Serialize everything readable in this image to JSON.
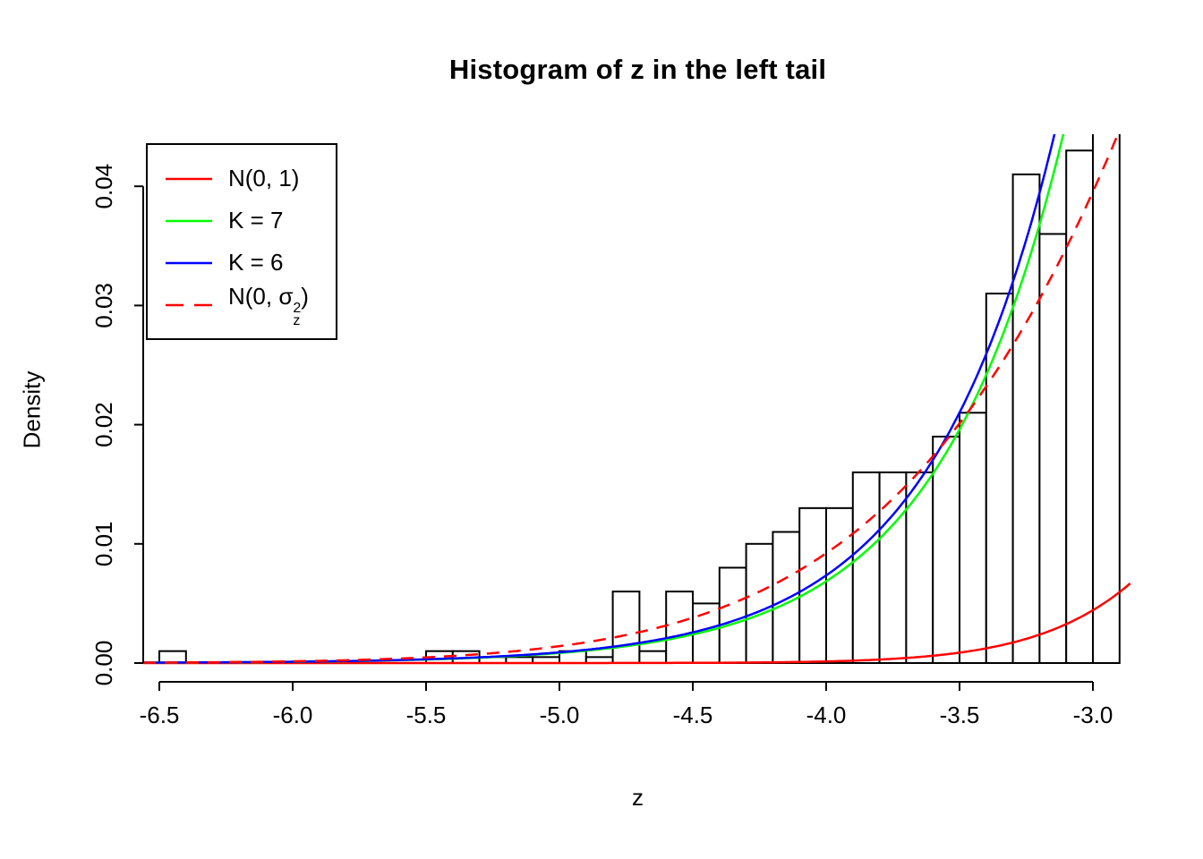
{
  "title": "Histogram of z in the left tail",
  "xlabel": "z",
  "ylabel": "Density",
  "legend": {
    "items": [
      {
        "label": "N(0, 1)",
        "color": "#ff0000",
        "dash": false
      },
      {
        "label": "K = 7",
        "color": "#00ff00",
        "dash": false
      },
      {
        "label": "K = 6",
        "color": "#0000ff",
        "dash": false
      },
      {
        "label_prefix": "N(0, σ",
        "label_sup": "2",
        "label_sub": "z",
        "label_suffix": ")",
        "color": "#ff0000",
        "dash": true
      }
    ]
  },
  "chart_data": {
    "type": "histogram",
    "title": "Histogram of z in the left tail",
    "xlabel": "z",
    "ylabel": "Density",
    "xlim": [
      -6.56,
      -2.853
    ],
    "ylim": [
      0,
      0.0444
    ],
    "grid": false,
    "legend_position": "top-left",
    "x_ticks": [
      -6.5,
      -6.0,
      -5.5,
      -5.0,
      -4.5,
      -4.0,
      -3.5,
      -3.0
    ],
    "x_tick_labels": [
      "-6.5",
      "-6.0",
      "-5.5",
      "-5.0",
      "-4.5",
      "-4.0",
      "-3.5",
      "-3.0"
    ],
    "y_ticks": [
      0,
      0.01,
      0.02,
      0.03,
      0.04
    ],
    "y_tick_labels": [
      "0.00",
      "0.01",
      "0.02",
      "0.03",
      "0.04"
    ],
    "histogram": {
      "bin_start": -6.5,
      "bin_width": 0.1,
      "fill": "#ffffff",
      "stroke": "#000000",
      "densities": [
        0.001,
        0,
        0,
        0,
        0,
        0,
        0,
        0,
        0,
        0,
        0.001,
        0.001,
        0.0005,
        0.0005,
        0.0005,
        0.001,
        0.0005,
        0.006,
        0.001,
        0.006,
        0.005,
        0.008,
        0.01,
        0.011,
        0.013,
        0.013,
        0.016,
        0.016,
        0.016,
        0.019,
        0.021,
        0.031,
        0.041,
        0.036,
        0.043,
        0.048
      ]
    },
    "curves": [
      {
        "name": "N(0, 1)",
        "kind": "normal",
        "mean": 0,
        "sd": 1.0,
        "color": "#ff0000",
        "dashed": false
      },
      {
        "name": "K = 7",
        "kind": "exponential",
        "scale": 30.5,
        "rate": 2.1,
        "color": "#00ff00",
        "dashed": false
      },
      {
        "name": "K = 6",
        "kind": "exponential",
        "scale": 32.7,
        "rate": 2.1,
        "color": "#0000ff",
        "dashed": false
      },
      {
        "name": "N(0, σz²)",
        "kind": "normal",
        "mean": 0,
        "sd": 1.55,
        "color": "#ff0000",
        "dashed": true
      }
    ]
  }
}
